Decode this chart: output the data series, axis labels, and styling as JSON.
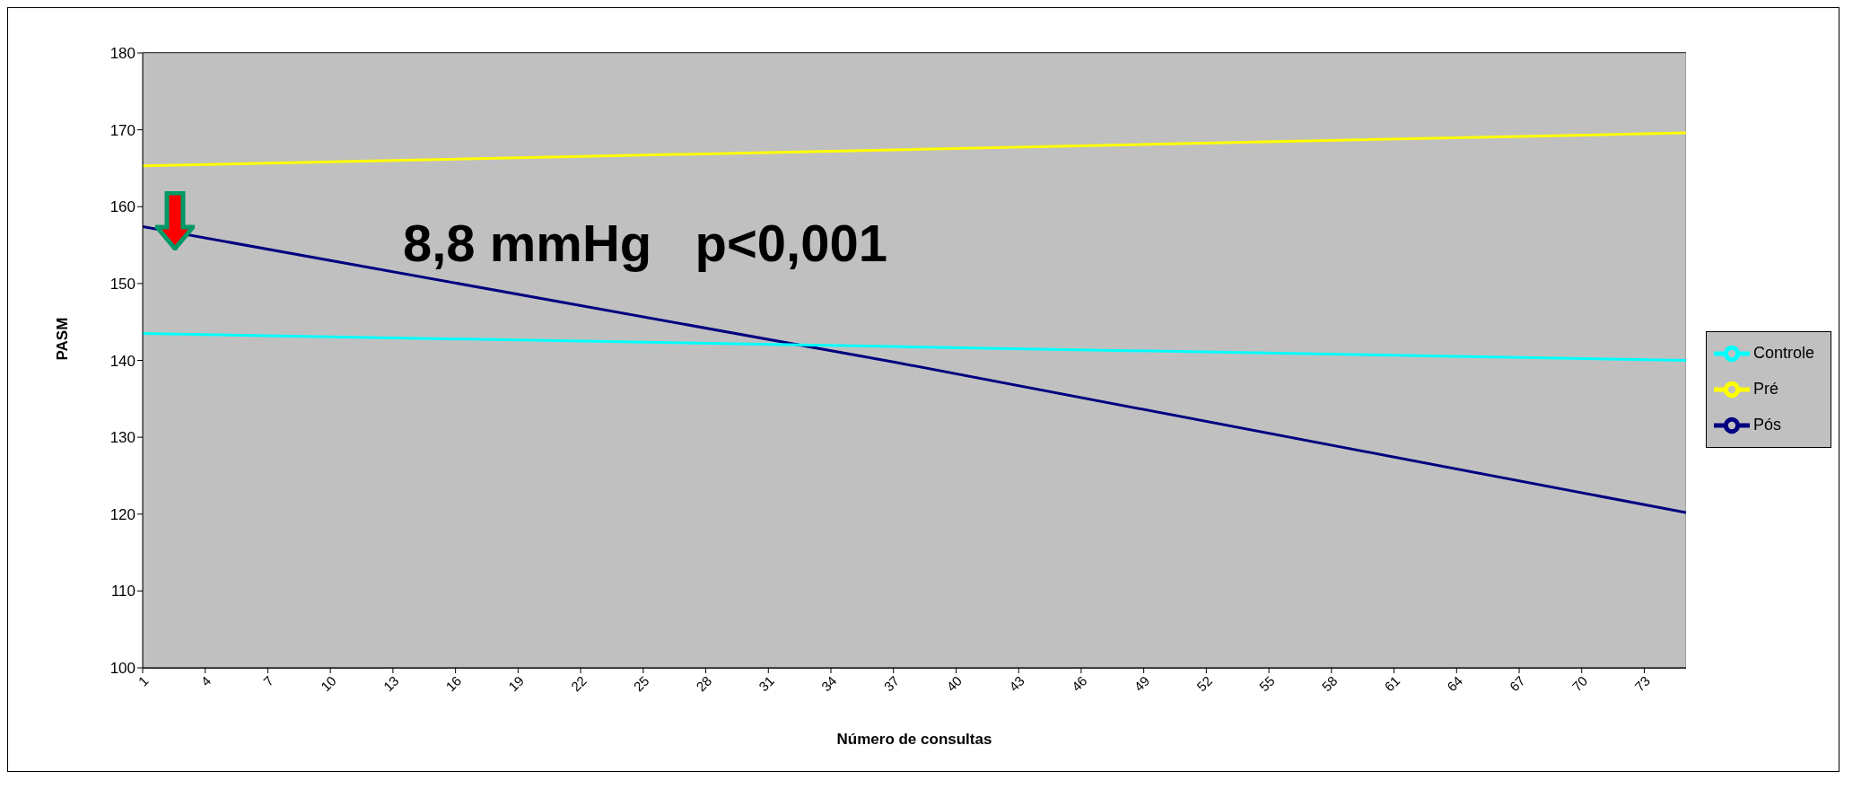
{
  "chart_data": {
    "type": "line",
    "xlabel": "Número de consultas",
    "ylabel": "PASM",
    "xlim": [
      1,
      75
    ],
    "xticks": [
      1,
      4,
      7,
      10,
      13,
      16,
      19,
      22,
      25,
      28,
      31,
      34,
      37,
      40,
      43,
      46,
      49,
      52,
      55,
      58,
      61,
      64,
      67,
      70,
      73
    ],
    "ylim": [
      100,
      180
    ],
    "yticks": [
      100,
      110,
      120,
      130,
      140,
      150,
      160,
      170,
      180
    ],
    "series": [
      {
        "name": "Pré",
        "color": "#ffff00",
        "x": [
          1,
          37,
          75
        ],
        "values": [
          165.3,
          167.4,
          169.6
        ]
      },
      {
        "name": "Pós",
        "color": "#000080",
        "x": [
          1,
          37,
          75
        ],
        "values": [
          157.4,
          139.8,
          120.2
        ]
      },
      {
        "name": "Controle",
        "color": "#00ffff",
        "x": [
          1,
          37,
          75
        ],
        "values": [
          143.5,
          141.8,
          140.0
        ]
      }
    ],
    "annotations": [
      "8,8 mmHg   p<0,001"
    ],
    "grid": "y",
    "legend": "right",
    "marker": "none",
    "line_style": "solid"
  }
}
